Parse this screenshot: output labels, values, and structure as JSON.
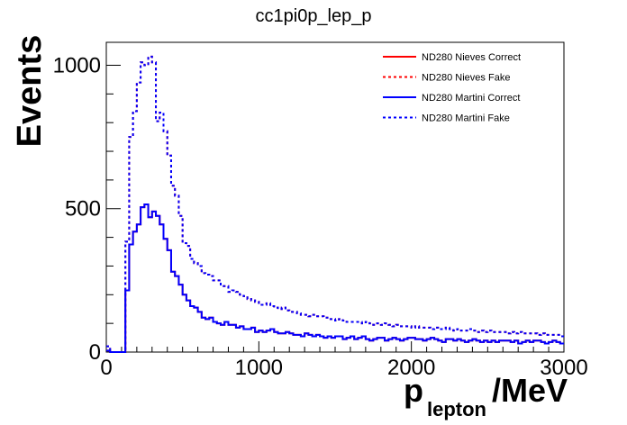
{
  "chart_data": {
    "type": "line",
    "title": "cc1pi0p_lep_p",
    "ylabel": "Events",
    "xlabel_main": "p",
    "xlabel_sub": "lepton",
    "xlabel_unit": "/MeV",
    "xlim": [
      0,
      3000
    ],
    "ylim": [
      0,
      1080
    ],
    "x_ticks": [
      "0",
      "1000",
      "2000",
      "3000"
    ],
    "y_ticks": [
      "0",
      "500",
      "1000"
    ],
    "x_tick_values": [
      0,
      1000,
      2000,
      3000
    ],
    "y_tick_values": [
      0,
      500,
      1000
    ],
    "bin_width": 25,
    "legend_position": "top-right",
    "series": [
      {
        "name": "ND280 Nieves Correct",
        "color": "#ff0000",
        "style": "solid",
        "values": [
          5,
          0,
          0,
          0,
          0,
          215,
          375,
          420,
          445,
          505,
          515,
          470,
          490,
          475,
          445,
          395,
          355,
          280,
          265,
          235,
          200,
          180,
          160,
          155,
          140,
          120,
          115,
          120,
          105,
          100,
          95,
          105,
          95,
          95,
          85,
          90,
          80,
          80,
          85,
          70,
          75,
          70,
          75,
          80,
          70,
          65,
          65,
          70,
          65,
          60,
          60,
          55,
          65,
          60,
          55,
          60,
          55,
          50,
          55,
          50,
          55,
          55,
          45,
          50,
          55,
          45,
          50,
          55,
          45,
          40,
          45,
          50,
          50,
          40,
          45,
          50,
          45,
          40,
          45,
          50,
          50,
          45,
          45,
          40,
          45,
          50,
          45,
          40,
          35,
          45,
          45,
          40,
          45,
          40,
          35,
          40,
          45,
          40,
          35,
          40,
          35,
          40,
          35,
          40,
          40,
          40,
          35,
          40,
          30,
          35,
          40,
          35,
          40,
          40,
          35,
          30,
          35,
          40,
          35,
          30
        ]
      },
      {
        "name": "ND280 Nieves Fake",
        "color": "#ff0000",
        "style": "dashed",
        "values": [
          20,
          0,
          0,
          0,
          0,
          385,
          750,
          840,
          940,
          1010,
          1000,
          1030,
          1010,
          805,
          835,
          770,
          685,
          580,
          545,
          475,
          380,
          370,
          325,
          310,
          300,
          275,
          270,
          265,
          250,
          250,
          230,
          230,
          210,
          215,
          210,
          200,
          195,
          185,
          180,
          175,
          165,
          165,
          170,
          160,
          155,
          150,
          155,
          145,
          140,
          140,
          135,
          130,
          130,
          125,
          130,
          125,
          125,
          120,
          115,
          115,
          110,
          115,
          110,
          105,
          105,
          105,
          105,
          100,
          105,
          100,
          95,
          100,
          95,
          100,
          95,
          90,
          95,
          90,
          90,
          90,
          85,
          90,
          85,
          85,
          85,
          80,
          85,
          80,
          80,
          85,
          80,
          75,
          80,
          75,
          75,
          80,
          75,
          70,
          75,
          70,
          75,
          70,
          70,
          70,
          70,
          65,
          70,
          65,
          70,
          65,
          65,
          65,
          65,
          60,
          65,
          60,
          60,
          60,
          60,
          55
        ]
      },
      {
        "name": "ND280 Martini Correct",
        "color": "#0000ff",
        "style": "solid",
        "values": [
          5,
          0,
          0,
          0,
          0,
          215,
          375,
          420,
          445,
          505,
          515,
          470,
          490,
          475,
          445,
          395,
          355,
          280,
          265,
          235,
          200,
          180,
          160,
          155,
          140,
          120,
          115,
          120,
          105,
          100,
          95,
          105,
          95,
          95,
          85,
          90,
          80,
          80,
          85,
          70,
          75,
          70,
          75,
          80,
          70,
          65,
          65,
          70,
          65,
          60,
          60,
          55,
          65,
          60,
          55,
          60,
          55,
          50,
          55,
          50,
          55,
          55,
          45,
          50,
          55,
          45,
          50,
          55,
          45,
          40,
          45,
          50,
          50,
          40,
          45,
          50,
          45,
          40,
          45,
          50,
          50,
          45,
          45,
          40,
          45,
          50,
          45,
          40,
          35,
          45,
          45,
          40,
          45,
          40,
          35,
          40,
          45,
          40,
          35,
          40,
          35,
          40,
          35,
          40,
          40,
          40,
          35,
          40,
          30,
          35,
          40,
          35,
          40,
          40,
          35,
          30,
          35,
          40,
          35,
          30
        ]
      },
      {
        "name": "ND280 Martini Fake",
        "color": "#0000ff",
        "style": "dashed",
        "values": [
          20,
          0,
          0,
          0,
          0,
          385,
          750,
          840,
          940,
          1010,
          1000,
          1030,
          1010,
          805,
          835,
          770,
          685,
          580,
          545,
          475,
          380,
          370,
          325,
          310,
          300,
          275,
          270,
          265,
          250,
          250,
          230,
          230,
          210,
          215,
          210,
          200,
          195,
          185,
          180,
          175,
          165,
          165,
          170,
          160,
          155,
          150,
          155,
          145,
          140,
          140,
          135,
          130,
          130,
          125,
          130,
          125,
          125,
          120,
          115,
          115,
          110,
          115,
          110,
          105,
          105,
          105,
          105,
          100,
          105,
          100,
          95,
          100,
          95,
          100,
          95,
          90,
          95,
          90,
          90,
          90,
          85,
          90,
          85,
          85,
          85,
          80,
          85,
          80,
          80,
          85,
          80,
          75,
          80,
          75,
          75,
          80,
          75,
          70,
          75,
          70,
          75,
          70,
          70,
          70,
          70,
          65,
          70,
          65,
          70,
          65,
          65,
          65,
          65,
          60,
          65,
          60,
          60,
          60,
          60,
          55
        ]
      }
    ]
  }
}
